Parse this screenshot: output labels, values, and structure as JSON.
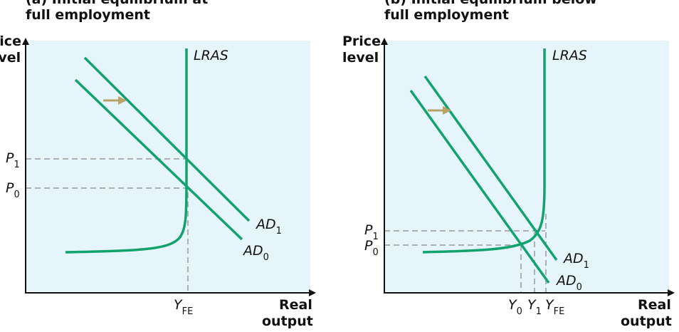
{
  "panel_a": {
    "title_line1": "(a) Initial equilibrium at",
    "title_line2": "full employment",
    "y_axis_label_line1": "Price",
    "y_axis_label_line2": "level",
    "x_axis_label_line1": "Real",
    "x_axis_label_line2": "output",
    "curve_lras": "LRAS",
    "curve_ad1_main": "AD",
    "curve_ad1_sub": "1",
    "curve_ad0_main": "AD",
    "curve_ad0_sub": "0",
    "price_p1_main": "P",
    "price_p1_sub": "1",
    "price_p0_main": "P",
    "price_p0_sub": "0",
    "output_yfe_main": "Y",
    "output_yfe_sub": "FE"
  },
  "panel_b": {
    "title_line1": "(b) Initial equilibrium below",
    "title_line2": "full employment",
    "y_axis_label_line1": "Price",
    "y_axis_label_line2": "level",
    "x_axis_label_line1": "Real",
    "x_axis_label_line2": "output",
    "curve_lras": "LRAS",
    "curve_ad1_main": "AD",
    "curve_ad1_sub": "1",
    "curve_ad0_main": "AD",
    "curve_ad0_sub": "0",
    "price_p1_main": "P",
    "price_p1_sub": "1",
    "price_p0_main": "P",
    "price_p0_sub": "0",
    "output_y0_main": "Y",
    "output_y0_sub": "0",
    "output_y1_main": "Y",
    "output_y1_sub": "1",
    "output_yfe_main": "Y",
    "output_yfe_sub": "FE"
  },
  "colors": {
    "plot_background": "#e6f5fb",
    "curve": "#12a26e",
    "shift_arrow": "#b5a36a",
    "dashed_guide": "#9a9a9a",
    "axis": "#111111"
  }
}
